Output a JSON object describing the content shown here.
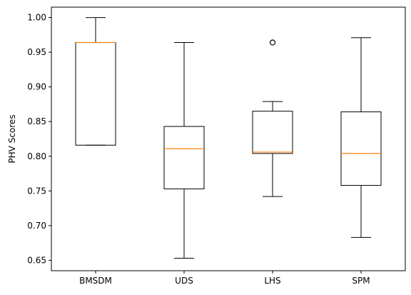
{
  "chart_data": {
    "type": "box",
    "title": "",
    "xlabel": "",
    "ylabel": "PHV Scores",
    "categories": [
      "BMSDM",
      "UDS",
      "LHS",
      "SPM"
    ],
    "ylim": [
      0.635,
      1.015
    ],
    "yticks": [
      0.65,
      0.7,
      0.75,
      0.8,
      0.85,
      0.9,
      0.95,
      1.0
    ],
    "ytick_labels": [
      "0.65",
      "0.70",
      "0.75",
      "0.80",
      "0.85",
      "0.90",
      "0.95",
      "1.00"
    ],
    "boxes": [
      {
        "name": "BMSDM",
        "whisker_low": 0.816,
        "q1": 0.816,
        "median": 0.964,
        "q3": 0.964,
        "whisker_high": 1.0,
        "outliers": []
      },
      {
        "name": "UDS",
        "whisker_low": 0.653,
        "q1": 0.753,
        "median": 0.811,
        "q3": 0.843,
        "whisker_high": 0.964,
        "outliers": []
      },
      {
        "name": "LHS",
        "whisker_low": 0.742,
        "q1": 0.804,
        "median": 0.806,
        "q3": 0.865,
        "whisker_high": 0.879,
        "outliers": [
          0.964
        ]
      },
      {
        "name": "SPM",
        "whisker_low": 0.683,
        "q1": 0.758,
        "median": 0.804,
        "q3": 0.864,
        "whisker_high": 0.971,
        "outliers": []
      }
    ],
    "grid": false,
    "legend": "none",
    "colors": {
      "box": "#000000",
      "median": "#ff7f0e",
      "outlier": "#000000"
    }
  }
}
